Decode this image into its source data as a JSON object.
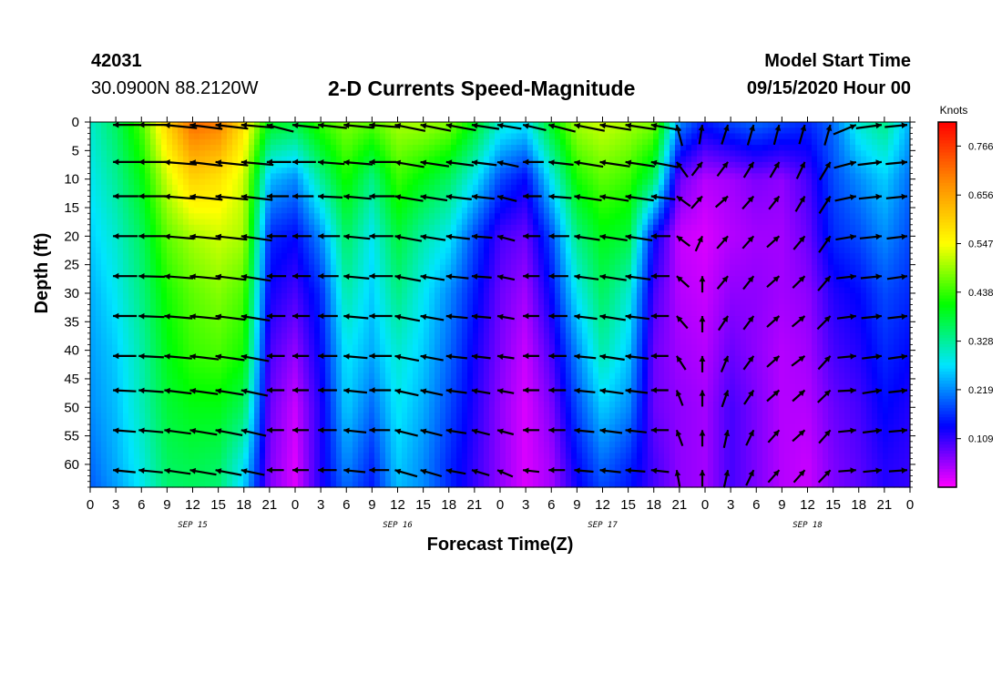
{
  "header": {
    "station_id": "42031",
    "station_coords": "30.0900N 88.2120W",
    "title": "2-D Currents Speed-Magnitude",
    "model_start_label": "Model Start Time",
    "model_start_value": "09/15/2020 Hour 00"
  },
  "chart_data": {
    "type": "heatmap",
    "title": "2-D Currents Speed-Magnitude",
    "xlabel": "Forecast Time(Z)",
    "ylabel": "Depth (ft)",
    "x_unit": "hours since model start",
    "xlim": [
      0,
      96
    ],
    "x_ticks": [
      0,
      3,
      6,
      9,
      12,
      15,
      18,
      21,
      24,
      27,
      30,
      33,
      36,
      39,
      42,
      45,
      48,
      51,
      54,
      57,
      60,
      63,
      66,
      69,
      72,
      75,
      78,
      81,
      84,
      87,
      90,
      93,
      96
    ],
    "x_tick_labels": [
      "0",
      "3",
      "6",
      "9",
      "12",
      "15",
      "18",
      "21",
      "0",
      "3",
      "6",
      "9",
      "12",
      "15",
      "18",
      "21",
      "0",
      "3",
      "6",
      "9",
      "12",
      "15",
      "18",
      "21",
      "0",
      "3",
      "6",
      "9",
      "12",
      "15",
      "18",
      "21",
      "0"
    ],
    "date_labels": [
      {
        "text": "SEP 15",
        "hour": 12
      },
      {
        "text": "SEP 16",
        "hour": 36
      },
      {
        "text": "SEP 17",
        "hour": 60
      },
      {
        "text": "SEP 18",
        "hour": 84
      }
    ],
    "ylim": [
      0,
      64
    ],
    "y_inverted": true,
    "y_ticks": [
      0,
      5,
      10,
      15,
      20,
      25,
      30,
      35,
      40,
      45,
      50,
      55,
      60
    ],
    "colorbar": {
      "label": "Knots",
      "tick_values": [
        0.766,
        0.656,
        0.547,
        0.438,
        0.328,
        0.219,
        0.109
      ],
      "tick_labels": [
        "0.766",
        "0.656",
        "0.547",
        "0.438",
        "0.328",
        "0.219",
        "0.109"
      ],
      "range": [
        0.0,
        0.82
      ],
      "colors": [
        "#ff00ff",
        "#0000ff",
        "#00e5ff",
        "#00ff00",
        "#ffff00",
        "#ff8c00",
        "#ff0000"
      ]
    },
    "arrow_depths_ft": [
      0.5,
      7,
      13,
      20,
      27,
      34,
      41,
      47,
      54,
      61
    ],
    "arrow_hours": [
      3,
      6,
      9,
      12,
      15,
      18,
      21,
      24,
      27,
      30,
      33,
      36,
      39,
      42,
      45,
      48,
      51,
      54,
      57,
      60,
      63,
      66,
      69,
      72,
      75,
      78,
      81,
      84,
      87,
      90,
      93,
      96
    ],
    "speed_field_description": "speed (knots) sampled on a time x depth grid; values below",
    "speed_hours": [
      0,
      3,
      6,
      9,
      12,
      15,
      18,
      21,
      24,
      27,
      30,
      33,
      36,
      39,
      42,
      45,
      48,
      51,
      54,
      57,
      60,
      63,
      66,
      69,
      72,
      75,
      78,
      81,
      84,
      87,
      90,
      93,
      96
    ],
    "speed_depths_ft": [
      0,
      10,
      20,
      30,
      40,
      50,
      60,
      64
    ],
    "speed_knots": [
      [
        0.3,
        0.28,
        0.26,
        0.24,
        0.23,
        0.22,
        0.2,
        0.19
      ],
      [
        0.36,
        0.33,
        0.3,
        0.28,
        0.26,
        0.25,
        0.24,
        0.23
      ],
      [
        0.45,
        0.4,
        0.36,
        0.34,
        0.32,
        0.31,
        0.29,
        0.28
      ],
      [
        0.6,
        0.52,
        0.46,
        0.42,
        0.4,
        0.38,
        0.36,
        0.35
      ],
      [
        0.72,
        0.6,
        0.5,
        0.46,
        0.44,
        0.4,
        0.37,
        0.36
      ],
      [
        0.7,
        0.58,
        0.52,
        0.48,
        0.45,
        0.4,
        0.36,
        0.35
      ],
      [
        0.58,
        0.52,
        0.5,
        0.45,
        0.42,
        0.36,
        0.28,
        0.26
      ],
      [
        0.4,
        0.25,
        0.16,
        0.13,
        0.1,
        0.08,
        0.07,
        0.07
      ],
      [
        0.38,
        0.22,
        0.14,
        0.1,
        0.06,
        0.03,
        0.02,
        0.02
      ],
      [
        0.44,
        0.33,
        0.22,
        0.16,
        0.14,
        0.12,
        0.12,
        0.12
      ],
      [
        0.48,
        0.42,
        0.36,
        0.32,
        0.28,
        0.26,
        0.22,
        0.2
      ],
      [
        0.46,
        0.34,
        0.28,
        0.26,
        0.24,
        0.2,
        0.16,
        0.15
      ],
      [
        0.5,
        0.44,
        0.38,
        0.34,
        0.3,
        0.28,
        0.26,
        0.25
      ],
      [
        0.5,
        0.4,
        0.32,
        0.28,
        0.26,
        0.24,
        0.22,
        0.22
      ],
      [
        0.48,
        0.36,
        0.28,
        0.22,
        0.2,
        0.18,
        0.16,
        0.16
      ],
      [
        0.4,
        0.28,
        0.18,
        0.15,
        0.13,
        0.12,
        0.11,
        0.11
      ],
      [
        0.3,
        0.18,
        0.1,
        0.08,
        0.07,
        0.06,
        0.06,
        0.06
      ],
      [
        0.28,
        0.14,
        0.08,
        0.05,
        0.03,
        0.02,
        0.02,
        0.02
      ],
      [
        0.4,
        0.28,
        0.18,
        0.14,
        0.1,
        0.07,
        0.05,
        0.05
      ],
      [
        0.5,
        0.42,
        0.34,
        0.28,
        0.22,
        0.18,
        0.14,
        0.13
      ],
      [
        0.52,
        0.46,
        0.4,
        0.36,
        0.32,
        0.26,
        0.2,
        0.18
      ],
      [
        0.5,
        0.44,
        0.38,
        0.3,
        0.26,
        0.22,
        0.16,
        0.15
      ],
      [
        0.48,
        0.36,
        0.14,
        0.1,
        0.08,
        0.08,
        0.1,
        0.1
      ],
      [
        0.22,
        0.08,
        0.03,
        0.04,
        0.05,
        0.06,
        0.06,
        0.06
      ],
      [
        0.15,
        0.04,
        0.02,
        0.03,
        0.04,
        0.05,
        0.05,
        0.05
      ],
      [
        0.18,
        0.05,
        0.04,
        0.06,
        0.08,
        0.1,
        0.1,
        0.1
      ],
      [
        0.2,
        0.07,
        0.05,
        0.06,
        0.06,
        0.07,
        0.07,
        0.07
      ],
      [
        0.18,
        0.06,
        0.05,
        0.05,
        0.04,
        0.04,
        0.04,
        0.04
      ],
      [
        0.16,
        0.1,
        0.08,
        0.06,
        0.05,
        0.04,
        0.03,
        0.03
      ],
      [
        0.2,
        0.18,
        0.16,
        0.12,
        0.1,
        0.08,
        0.07,
        0.07
      ],
      [
        0.3,
        0.22,
        0.18,
        0.14,
        0.12,
        0.1,
        0.09,
        0.09
      ],
      [
        0.34,
        0.26,
        0.22,
        0.18,
        0.16,
        0.14,
        0.12,
        0.12
      ],
      [
        0.24,
        0.2,
        0.18,
        0.16,
        0.14,
        0.12,
        0.11,
        0.11
      ]
    ],
    "arrows_description": "current direction vectors (u,v components in knots) at each arrow_hours x arrow_depths_ft node",
    "arrow_u": [
      [
        -0.4,
        -0.45,
        -0.5,
        -0.55,
        -0.55,
        -0.5,
        -0.2,
        -0.3,
        -0.35,
        -0.4,
        -0.4,
        -0.3,
        -0.3,
        -0.3,
        -0.28,
        -0.2,
        -0.15,
        -0.2,
        -0.3,
        -0.35,
        -0.35,
        -0.3,
        -0.05,
        0.02,
        0.05,
        0.05,
        0.04,
        0.04,
        0.05,
        0.1,
        0.25,
        0.2
      ],
      [
        -0.38,
        -0.42,
        -0.48,
        -0.5,
        -0.5,
        -0.46,
        -0.38,
        -0.3,
        -0.32,
        -0.38,
        -0.38,
        -0.3,
        -0.3,
        -0.3,
        -0.24,
        -0.12,
        -0.2,
        -0.25,
        -0.3,
        -0.34,
        -0.32,
        -0.24,
        -0.08,
        0.05,
        0.06,
        0.06,
        0.05,
        0.05,
        0.1,
        0.12,
        0.22,
        0.18
      ],
      [
        -0.36,
        -0.4,
        -0.44,
        -0.46,
        -0.46,
        -0.4,
        -0.32,
        -0.24,
        -0.28,
        -0.34,
        -0.34,
        -0.28,
        -0.26,
        -0.26,
        -0.2,
        -0.08,
        -0.16,
        -0.22,
        -0.28,
        -0.3,
        -0.3,
        -0.22,
        -0.08,
        0.04,
        0.05,
        0.05,
        0.04,
        0.05,
        0.1,
        0.12,
        0.2,
        0.16
      ],
      [
        -0.32,
        -0.36,
        -0.4,
        -0.42,
        -0.42,
        -0.36,
        -0.28,
        -0.2,
        -0.24,
        -0.3,
        -0.3,
        -0.24,
        -0.22,
        -0.22,
        -0.16,
        -0.05,
        -0.12,
        -0.2,
        -0.24,
        -0.28,
        -0.26,
        -0.2,
        -0.06,
        0.02,
        0.04,
        0.04,
        0.05,
        0.06,
        0.1,
        0.12,
        0.18,
        0.14
      ],
      [
        -0.3,
        -0.34,
        -0.38,
        -0.4,
        -0.38,
        -0.32,
        -0.24,
        -0.18,
        -0.22,
        -0.28,
        -0.28,
        -0.22,
        -0.2,
        -0.2,
        -0.14,
        -0.05,
        -0.1,
        -0.18,
        -0.22,
        -0.26,
        -0.24,
        -0.18,
        -0.05,
        0.0,
        0.04,
        0.04,
        0.05,
        0.06,
        0.1,
        0.12,
        0.16,
        0.12
      ],
      [
        -0.28,
        -0.32,
        -0.36,
        -0.38,
        -0.36,
        -0.3,
        -0.22,
        -0.16,
        -0.2,
        -0.26,
        -0.26,
        -0.2,
        -0.18,
        -0.18,
        -0.12,
        -0.05,
        -0.1,
        -0.16,
        -0.2,
        -0.24,
        -0.22,
        -0.16,
        -0.04,
        0.0,
        0.04,
        0.04,
        0.05,
        0.06,
        0.1,
        0.1,
        0.14,
        0.12
      ],
      [
        -0.26,
        -0.3,
        -0.34,
        -0.34,
        -0.32,
        -0.26,
        -0.2,
        -0.14,
        -0.18,
        -0.24,
        -0.24,
        -0.18,
        -0.16,
        -0.16,
        -0.1,
        -0.05,
        -0.08,
        -0.14,
        -0.18,
        -0.22,
        -0.2,
        -0.14,
        -0.03,
        0.0,
        0.03,
        0.04,
        0.05,
        0.06,
        0.08,
        0.1,
        0.12,
        0.1
      ],
      [
        -0.24,
        -0.28,
        -0.3,
        -0.3,
        -0.28,
        -0.22,
        -0.16,
        -0.12,
        -0.16,
        -0.22,
        -0.22,
        -0.16,
        -0.14,
        -0.14,
        -0.08,
        -0.04,
        -0.06,
        -0.12,
        -0.16,
        -0.2,
        -0.18,
        -0.12,
        -0.02,
        0.0,
        0.03,
        0.04,
        0.05,
        0.05,
        0.08,
        0.1,
        0.1,
        0.1
      ],
      [
        -0.22,
        -0.26,
        -0.28,
        -0.26,
        -0.24,
        -0.18,
        -0.14,
        -0.1,
        -0.14,
        -0.2,
        -0.2,
        -0.14,
        -0.12,
        -0.12,
        -0.06,
        -0.03,
        -0.05,
        -0.1,
        -0.14,
        -0.18,
        -0.16,
        -0.1,
        -0.02,
        0.0,
        0.02,
        0.03,
        0.04,
        0.05,
        0.06,
        0.08,
        0.1,
        0.1
      ],
      [
        -0.2,
        -0.24,
        -0.26,
        -0.24,
        -0.22,
        -0.16,
        -0.12,
        -0.08,
        -0.12,
        -0.18,
        -0.18,
        -0.12,
        -0.1,
        -0.1,
        -0.05,
        -0.02,
        -0.04,
        -0.08,
        -0.12,
        -0.16,
        -0.14,
        -0.08,
        -0.01,
        0.0,
        0.02,
        0.03,
        0.04,
        0.04,
        0.06,
        0.08,
        0.1,
        0.1
      ]
    ]
  },
  "axes_text": {
    "ylabel": "Depth (ft)",
    "xlabel": "Forecast Time(Z)",
    "colorbar_label": "Knots"
  }
}
